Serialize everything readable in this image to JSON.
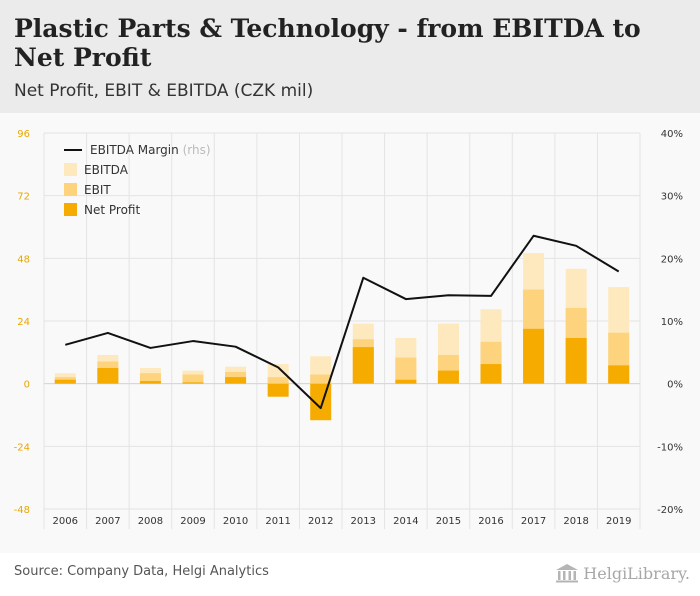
{
  "header": {
    "title": "Plastic Parts & Technology - from EBITDA to Net Profit",
    "subtitle": "Net Profit, EBIT & EBITDA (CZK mil)"
  },
  "footer": {
    "source": "Source: Company Data, Helgi Analytics",
    "logo_text": "HelgiLibrary."
  },
  "colors": {
    "ebitda": "#fde9bd",
    "ebit": "#fdd37e",
    "net_profit": "#f5ab00",
    "margin_line": "#111111",
    "left_axis_text": "#e6a800"
  },
  "chart_data": {
    "type": "bar",
    "categories": [
      "2006",
      "2007",
      "2008",
      "2009",
      "2010",
      "2011",
      "2012",
      "2013",
      "2014",
      "2015",
      "2016",
      "2017",
      "2018",
      "2019"
    ],
    "series": [
      {
        "name": "EBITDA",
        "values": [
          4,
          11,
          6,
          5,
          6.5,
          7.5,
          10.5,
          23,
          17.5,
          23,
          28.5,
          50,
          44,
          37
        ]
      },
      {
        "name": "EBIT",
        "values": [
          2.5,
          8.5,
          4,
          3.5,
          4.5,
          2.5,
          3.5,
          17,
          10,
          11,
          16,
          36,
          29,
          19.5
        ]
      },
      {
        "name": "Net Profit",
        "values": [
          1.5,
          6,
          1,
          0.5,
          2.5,
          -5,
          -14,
          14,
          1.5,
          5,
          7.5,
          21,
          17.5,
          7
        ]
      }
    ],
    "line_series": {
      "name": "EBITDA Margin",
      "axis_note": "(rhs)",
      "values": [
        6.2,
        8.1,
        5.7,
        6.8,
        5.9,
        2.6,
        -3.9,
        16.9,
        13.5,
        14.1,
        14.0,
        23.6,
        22.0,
        17.9
      ]
    },
    "y_left": {
      "min": -48,
      "max": 96,
      "ticks": [
        "96",
        "72",
        "48",
        "24",
        "0",
        "-24",
        "-48"
      ]
    },
    "y_right": {
      "min": -20,
      "max": 40,
      "ticks": [
        "40%",
        "30%",
        "20%",
        "10%",
        "0%",
        "-10%",
        "-20%"
      ]
    },
    "grid": true,
    "legend_position": "top-left"
  }
}
